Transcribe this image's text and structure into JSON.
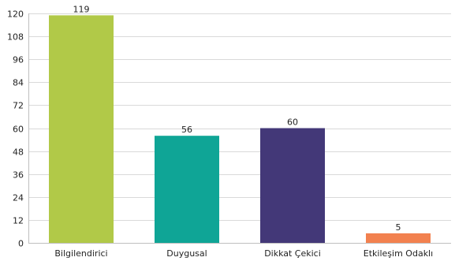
{
  "chart_data": {
    "type": "bar",
    "categories": [
      "Bilgilendirici",
      "Duygusal",
      "Dikkat Çekici",
      "Etkileşim Odaklı"
    ],
    "values": [
      119,
      56,
      60,
      5
    ],
    "data_labels": [
      "119",
      "56",
      "60",
      "5"
    ],
    "colors": [
      "#b1c948",
      "#0fa596",
      "#433878",
      "#f2814f"
    ],
    "ylim": [
      0,
      120
    ],
    "yticks": [
      0,
      12,
      24,
      36,
      48,
      60,
      72,
      84,
      96,
      108,
      120
    ],
    "ytick_labels": [
      "0",
      "12",
      "24",
      "36",
      "48",
      "60",
      "72",
      "84",
      "96",
      "108",
      "120"
    ],
    "grid": true,
    "legend": "none",
    "title": "",
    "xlabel": "",
    "ylabel": ""
  }
}
